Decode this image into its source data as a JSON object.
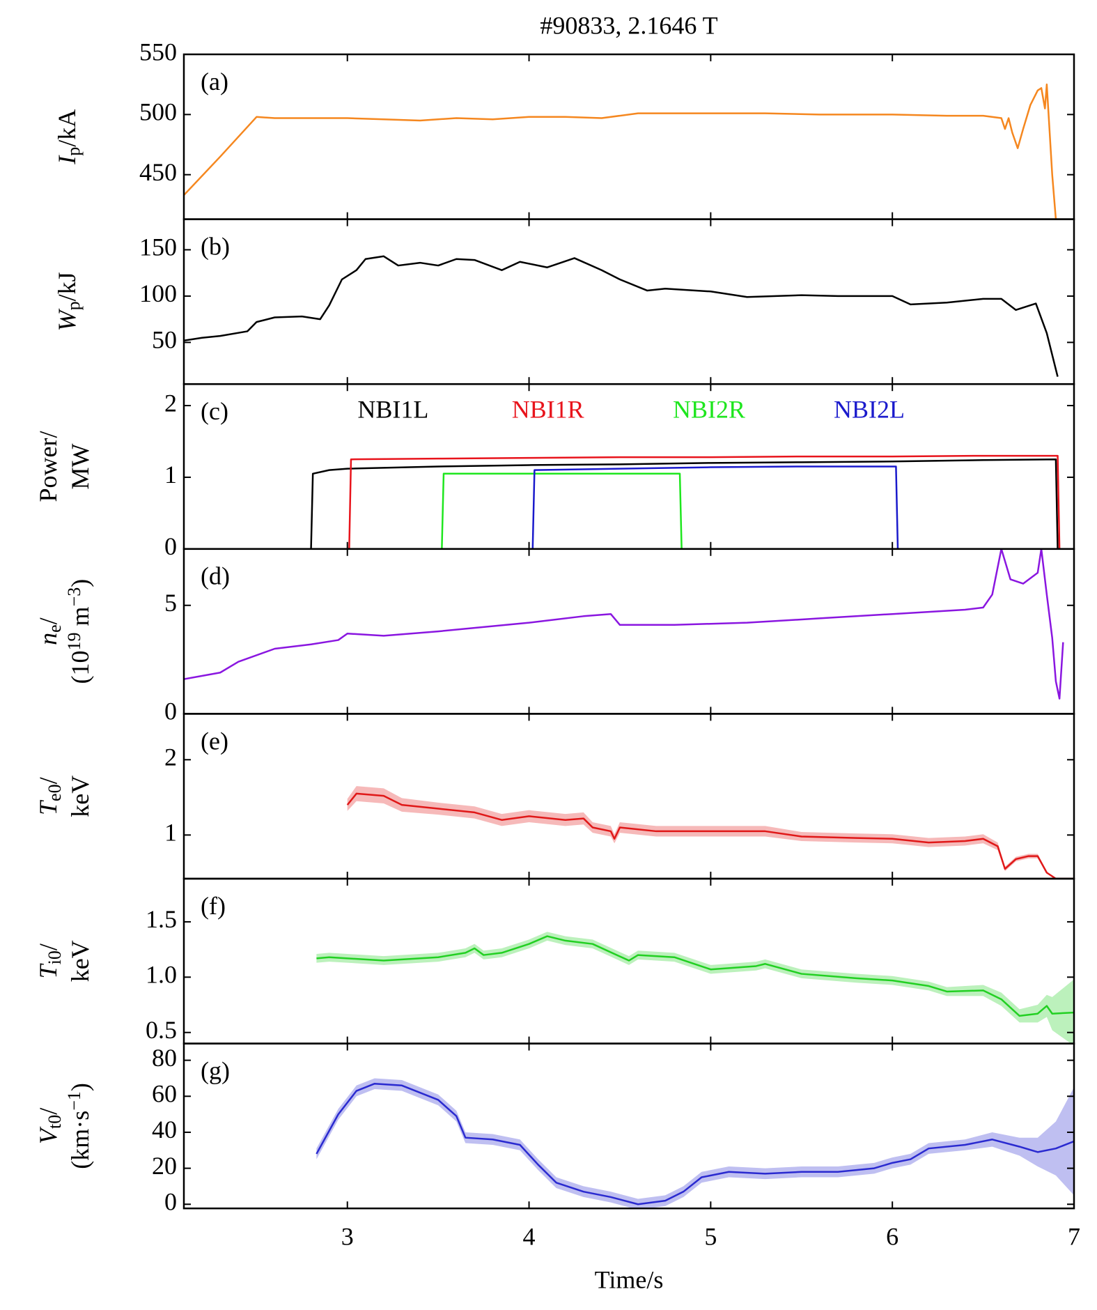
{
  "title": "#90833, 2.1646 T",
  "x_axis": {
    "xlabel": "Time/s",
    "xlim": [
      2.1,
      7
    ],
    "xticks": [
      3,
      4,
      5,
      6,
      7
    ]
  },
  "chart_data": [
    {
      "type": "line",
      "label": "(a)",
      "ylabel": [
        [
          {
            "text": "I",
            "italic": true
          },
          {
            "text": "p",
            "sub": true
          },
          {
            "text": "/kA"
          }
        ]
      ],
      "ylim": [
        413,
        550
      ],
      "yticks": [
        450,
        500,
        550
      ],
      "series": [
        {
          "color": "#f5871f",
          "x": [
            2.1,
            2.3,
            2.5,
            2.6,
            2.8,
            3.0,
            3.2,
            3.4,
            3.6,
            3.8,
            4.0,
            4.2,
            4.4,
            4.6,
            4.8,
            5.0,
            5.3,
            5.6,
            6.0,
            6.3,
            6.5,
            6.6,
            6.62,
            6.64,
            6.66,
            6.69,
            6.72,
            6.76,
            6.8,
            6.82,
            6.84,
            6.85,
            6.86,
            6.88,
            6.9
          ],
          "values": [
            433,
            465,
            498,
            497,
            497,
            497,
            496,
            495,
            497,
            496,
            498,
            498,
            497,
            501,
            501,
            501,
            501,
            500,
            500,
            499,
            499,
            497,
            488,
            497,
            485,
            472,
            488,
            508,
            520,
            522,
            505,
            525,
            500,
            450,
            413
          ]
        }
      ]
    },
    {
      "type": "line",
      "label": "(b)",
      "ylabel": [
        [
          {
            "text": "W",
            "italic": true
          },
          {
            "text": "p",
            "sub": true
          },
          {
            "text": "/kJ"
          }
        ]
      ],
      "ylim": [
        5,
        183
      ],
      "yticks": [
        50,
        100,
        150
      ],
      "series": [
        {
          "color": "#000000",
          "x": [
            2.1,
            2.2,
            2.3,
            2.45,
            2.5,
            2.6,
            2.75,
            2.85,
            2.9,
            2.97,
            3.05,
            3.1,
            3.2,
            3.28,
            3.4,
            3.5,
            3.6,
            3.7,
            3.85,
            3.95,
            4.1,
            4.25,
            4.4,
            4.5,
            4.65,
            4.75,
            5.0,
            5.2,
            5.5,
            5.7,
            6.0,
            6.1,
            6.3,
            6.5,
            6.6,
            6.68,
            6.79,
            6.85,
            6.91
          ],
          "values": [
            52,
            55,
            57,
            62,
            72,
            77,
            78,
            75,
            90,
            118,
            128,
            140,
            143,
            133,
            136,
            133,
            140,
            139,
            128,
            137,
            131,
            141,
            128,
            118,
            106,
            108,
            105,
            99,
            101,
            100,
            100,
            91,
            93,
            97,
            97,
            85,
            92,
            60,
            13
          ]
        }
      ]
    },
    {
      "type": "line",
      "label": "(c)",
      "ylabel": [
        [
          {
            "text": "Power/"
          }
        ],
        [
          {
            "text": "MW"
          }
        ]
      ],
      "ylim": [
        0,
        2.3
      ],
      "yticks": [
        0,
        1,
        2
      ],
      "series": [
        {
          "name": "NBI1L",
          "color": "#000000",
          "x": [
            2.8,
            2.81,
            2.9,
            3.0,
            3.5,
            4.0,
            4.5,
            5.0,
            5.5,
            6.0,
            6.5,
            6.9,
            6.91
          ],
          "values": [
            0,
            1.05,
            1.1,
            1.12,
            1.15,
            1.17,
            1.18,
            1.2,
            1.21,
            1.22,
            1.24,
            1.25,
            0
          ]
        },
        {
          "name": "NBI1R",
          "color": "#e8141c",
          "x": [
            3.01,
            3.02,
            3.5,
            4.0,
            4.5,
            5.0,
            5.5,
            6.0,
            6.5,
            6.91,
            6.92
          ],
          "values": [
            0,
            1.25,
            1.26,
            1.27,
            1.28,
            1.28,
            1.29,
            1.29,
            1.3,
            1.3,
            0
          ]
        },
        {
          "name": "NBI2R",
          "color": "#1ee61e",
          "x": [
            3.52,
            3.53,
            4.0,
            4.5,
            4.83,
            4.84
          ],
          "values": [
            0,
            1.05,
            1.05,
            1.05,
            1.05,
            0
          ]
        },
        {
          "name": "NBI2L",
          "color": "#1a1acc",
          "x": [
            4.02,
            4.03,
            4.5,
            5.0,
            5.5,
            6.02,
            6.03
          ],
          "values": [
            0,
            1.1,
            1.12,
            1.14,
            1.15,
            1.15,
            0
          ]
        }
      ]
    },
    {
      "type": "line",
      "label": "(d)",
      "ylabel": [
        [
          {
            "text": "n",
            "italic": true
          },
          {
            "text": "e",
            "sub": true
          },
          {
            "text": "/"
          }
        ],
        [
          {
            "text": "(10"
          },
          {
            "text": "19",
            "sup": true
          },
          {
            "text": " m"
          },
          {
            "text": "−3",
            "sup": true
          },
          {
            "text": ")"
          }
        ]
      ],
      "ylim": [
        0,
        7.6
      ],
      "yticks": [
        0,
        5
      ],
      "series": [
        {
          "color": "#8a16e0",
          "x": [
            2.1,
            2.3,
            2.4,
            2.6,
            2.8,
            2.95,
            3.0,
            3.2,
            3.5,
            4.0,
            4.3,
            4.45,
            4.5,
            4.8,
            5.2,
            5.6,
            6.0,
            6.4,
            6.5,
            6.55,
            6.6,
            6.65,
            6.72,
            6.8,
            6.82,
            6.85,
            6.88,
            6.9,
            6.92,
            6.94
          ],
          "values": [
            1.6,
            1.9,
            2.4,
            3.0,
            3.2,
            3.4,
            3.7,
            3.6,
            3.8,
            4.2,
            4.5,
            4.6,
            4.1,
            4.1,
            4.2,
            4.4,
            4.6,
            4.8,
            4.9,
            5.5,
            7.6,
            6.2,
            6.0,
            6.5,
            7.6,
            5.5,
            3.5,
            1.5,
            0.7,
            3.3
          ]
        }
      ]
    },
    {
      "type": "line",
      "label": "(e)",
      "ylabel": [
        [
          {
            "text": "T",
            "italic": true
          },
          {
            "text": "e0",
            "sub": true
          },
          {
            "text": "/"
          }
        ],
        [
          {
            "text": "keV"
          }
        ]
      ],
      "ylim": [
        0.42,
        2.61
      ],
      "yticks": [
        1,
        2
      ],
      "series": [
        {
          "color": "#e01818",
          "x": [
            3.0,
            3.05,
            3.2,
            3.3,
            3.5,
            3.7,
            3.85,
            4.0,
            4.2,
            4.3,
            4.35,
            4.45,
            4.47,
            4.5,
            4.7,
            5.0,
            5.3,
            5.5,
            5.8,
            6.0,
            6.2,
            6.4,
            6.5,
            6.58,
            6.62,
            6.68,
            6.75,
            6.8,
            6.85,
            6.9,
            7.0
          ],
          "values": [
            1.4,
            1.55,
            1.52,
            1.4,
            1.35,
            1.3,
            1.2,
            1.25,
            1.2,
            1.22,
            1.1,
            1.05,
            0.95,
            1.1,
            1.05,
            1.05,
            1.05,
            0.98,
            0.96,
            0.95,
            0.9,
            0.92,
            0.95,
            0.85,
            0.55,
            0.68,
            0.72,
            0.72,
            0.5,
            0.42,
            0.42
          ],
          "errors": [
            0.08,
            0.1,
            0.1,
            0.09,
            0.08,
            0.08,
            0.08,
            0.08,
            0.08,
            0.08,
            0.07,
            0.07,
            0.06,
            0.07,
            0.07,
            0.07,
            0.07,
            0.06,
            0.06,
            0.06,
            0.06,
            0.06,
            0.06,
            0.05,
            0.03,
            0.03,
            0.03,
            0.03,
            0,
            0,
            0
          ]
        }
      ]
    },
    {
      "type": "line",
      "label": "(f)",
      "ylabel": [
        [
          {
            "text": "T",
            "italic": true
          },
          {
            "text": "i0",
            "sub": true
          },
          {
            "text": "/"
          }
        ],
        [
          {
            "text": "keV"
          }
        ]
      ],
      "ylim": [
        0.4,
        1.89
      ],
      "yticks": [
        {
          "value": 0.5,
          "label": "0.5"
        },
        {
          "value": 1,
          "label": "1.0"
        },
        1.5
      ],
      "series": [
        {
          "color": "#22d022",
          "x": [
            2.83,
            2.9,
            3.2,
            3.5,
            3.65,
            3.7,
            3.75,
            3.85,
            4.0,
            4.1,
            4.2,
            4.35,
            4.55,
            4.6,
            4.8,
            5.0,
            5.25,
            5.3,
            5.5,
            5.8,
            6.0,
            6.2,
            6.3,
            6.5,
            6.6,
            6.7,
            6.8,
            6.85,
            6.88,
            7.0
          ],
          "values": [
            1.17,
            1.18,
            1.15,
            1.18,
            1.22,
            1.26,
            1.2,
            1.22,
            1.3,
            1.37,
            1.33,
            1.3,
            1.15,
            1.2,
            1.18,
            1.07,
            1.1,
            1.12,
            1.03,
            0.99,
            0.97,
            0.92,
            0.87,
            0.88,
            0.8,
            0.65,
            0.67,
            0.74,
            0.67,
            0.68
          ],
          "errors": [
            0.04,
            0.04,
            0.04,
            0.04,
            0.04,
            0.04,
            0.04,
            0.04,
            0.04,
            0.04,
            0.04,
            0.04,
            0.04,
            0.04,
            0.04,
            0.04,
            0.04,
            0.04,
            0.04,
            0.04,
            0.04,
            0.04,
            0.04,
            0.05,
            0.06,
            0.06,
            0.08,
            0.1,
            0.15,
            0.3
          ]
        }
      ]
    },
    {
      "type": "line",
      "label": "(g)",
      "ylabel": [
        [
          {
            "text": "V",
            "italic": true
          },
          {
            "text": "t0",
            "sub": true
          },
          {
            "text": "/"
          }
        ],
        [
          {
            "text": "(km·s"
          },
          {
            "text": "−1",
            "sup": true
          },
          {
            "text": ")"
          }
        ]
      ],
      "ylim": [
        -2.3,
        89.3
      ],
      "yticks": [
        0,
        20,
        40,
        60,
        80
      ],
      "series": [
        {
          "color": "#2a2ad0",
          "x": [
            2.83,
            2.95,
            3.05,
            3.15,
            3.3,
            3.5,
            3.6,
            3.65,
            3.8,
            3.95,
            4.05,
            4.15,
            4.3,
            4.45,
            4.6,
            4.75,
            4.85,
            4.95,
            5.1,
            5.3,
            5.5,
            5.7,
            5.9,
            6.0,
            6.1,
            6.2,
            6.4,
            6.55,
            6.7,
            6.8,
            6.9,
            7.0
          ],
          "values": [
            28,
            50,
            63,
            67,
            66,
            58,
            49,
            37,
            36,
            33,
            22,
            12,
            7,
            4,
            0,
            2,
            7,
            15,
            18,
            17,
            18,
            18,
            20,
            23,
            25,
            31,
            33,
            36,
            32,
            29,
            31,
            35
          ],
          "errors": [
            3,
            3,
            3,
            3,
            3,
            3,
            3,
            3,
            3,
            3,
            3,
            3,
            3,
            3,
            3,
            3,
            3,
            3,
            3,
            3,
            3,
            3,
            3,
            3,
            3,
            3,
            3,
            4,
            5,
            8,
            15,
            30
          ]
        }
      ]
    }
  ]
}
